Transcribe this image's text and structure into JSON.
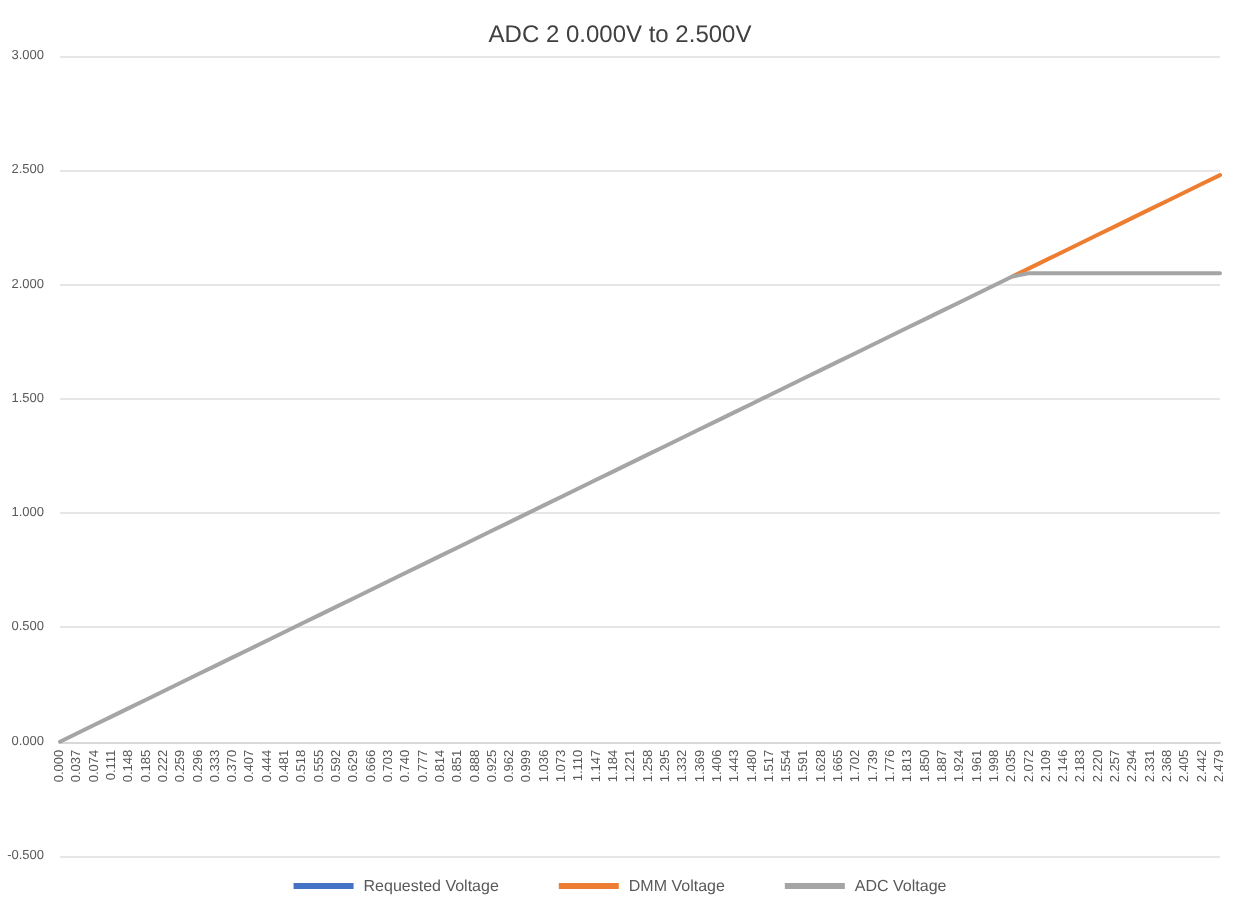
{
  "chart_data": {
    "type": "line",
    "title": "ADC 2 0.000V to 2.500V",
    "categories": [
      "0.000",
      "0.037",
      "0.074",
      "0.111",
      "0.148",
      "0.185",
      "0.222",
      "0.259",
      "0.296",
      "0.333",
      "0.370",
      "0.407",
      "0.444",
      "0.481",
      "0.518",
      "0.555",
      "0.592",
      "0.629",
      "0.666",
      "0.703",
      "0.740",
      "0.777",
      "0.814",
      "0.851",
      "0.888",
      "0.925",
      "0.962",
      "0.999",
      "1.036",
      "1.073",
      "1.110",
      "1.147",
      "1.184",
      "1.221",
      "1.258",
      "1.295",
      "1.332",
      "1.369",
      "1.406",
      "1.443",
      "1.480",
      "1.517",
      "1.554",
      "1.591",
      "1.628",
      "1.665",
      "1.702",
      "1.739",
      "1.776",
      "1.813",
      "1.850",
      "1.887",
      "1.924",
      "1.961",
      "1.998",
      "2.035",
      "2.072",
      "2.109",
      "2.146",
      "2.183",
      "2.220",
      "2.257",
      "2.294",
      "2.331",
      "2.368",
      "2.405",
      "2.442",
      "2.479"
    ],
    "series": [
      {
        "name": "Requested Voltage",
        "color": "#4472c4",
        "values": [
          null,
          null,
          null,
          null,
          null,
          null,
          null,
          null,
          null,
          null,
          null,
          null,
          null,
          null,
          null,
          null,
          null,
          null,
          null,
          null,
          null,
          null,
          null,
          null,
          null,
          null,
          null,
          null,
          null,
          null,
          null,
          null,
          null,
          null,
          null,
          null,
          null,
          null,
          null,
          null,
          null,
          null,
          null,
          null,
          null,
          null,
          null,
          null,
          null,
          null,
          null,
          null,
          null,
          null,
          null,
          null,
          null,
          null,
          null,
          null,
          null,
          null,
          null,
          null,
          null,
          null,
          null,
          null
        ]
      },
      {
        "name": "DMM Voltage",
        "color": "#ed7d31",
        "values": [
          null,
          null,
          null,
          null,
          null,
          null,
          null,
          null,
          null,
          null,
          null,
          null,
          null,
          null,
          null,
          null,
          null,
          null,
          null,
          null,
          null,
          null,
          null,
          null,
          null,
          null,
          null,
          null,
          null,
          null,
          null,
          null,
          null,
          null,
          null,
          null,
          null,
          null,
          null,
          null,
          null,
          null,
          null,
          null,
          null,
          null,
          null,
          null,
          null,
          null,
          null,
          null,
          null,
          null,
          null,
          2.035,
          2.072,
          2.109,
          2.146,
          2.183,
          2.22,
          2.257,
          2.294,
          2.331,
          2.368,
          2.405,
          2.442,
          2.479
        ]
      },
      {
        "name": "ADC Voltage",
        "color": "#a5a5a5",
        "values": [
          0,
          0.037,
          0.074,
          0.111,
          0.148,
          0.185,
          0.222,
          0.259,
          0.296,
          0.333,
          0.37,
          0.407,
          0.444,
          0.481,
          0.518,
          0.555,
          0.592,
          0.629,
          0.666,
          0.703,
          0.74,
          0.777,
          0.814,
          0.851,
          0.888,
          0.925,
          0.962,
          0.999,
          1.036,
          1.073,
          1.11,
          1.147,
          1.184,
          1.221,
          1.258,
          1.295,
          1.332,
          1.369,
          1.406,
          1.443,
          1.48,
          1.517,
          1.554,
          1.591,
          1.628,
          1.665,
          1.702,
          1.739,
          1.776,
          1.813,
          1.85,
          1.887,
          1.924,
          1.961,
          1.998,
          2.035,
          2.05,
          2.05,
          2.05,
          2.05,
          2.05,
          2.05,
          2.05,
          2.05,
          2.05,
          2.05,
          2.05,
          2.05
        ]
      }
    ],
    "ylim": [
      -0.5,
      3
    ],
    "yticks": [
      {
        "value": -0.5,
        "label": "-0.500"
      },
      {
        "value": 0,
        "label": "0.000"
      },
      {
        "value": 0.5,
        "label": "0.500"
      },
      {
        "value": 1,
        "label": "1.000"
      },
      {
        "value": 1.5,
        "label": "1.500"
      },
      {
        "value": 2,
        "label": "2.000"
      },
      {
        "value": 2.5,
        "label": "2.500"
      },
      {
        "value": 3,
        "label": "3.000"
      }
    ],
    "grid": "y",
    "legend": "bottom",
    "marker": "none",
    "line_style": "solid"
  }
}
